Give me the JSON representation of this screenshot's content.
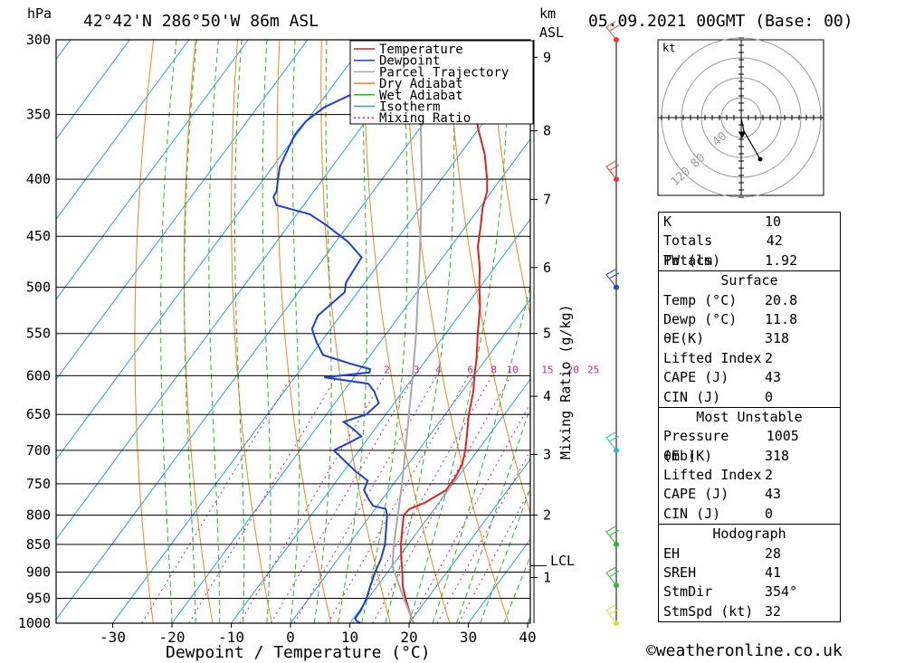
{
  "header": {
    "hpa_label": "hPa",
    "location": "42°42'N  286°50'W  86m  ASL",
    "km_label": "km",
    "asl_label": "ASL",
    "datetime": "05.09.2021  00GMT  (Base: 00)"
  },
  "axes": {
    "xlabel": "Dewpoint / Temperature (°C)",
    "mixing_label": "Mixing Ratio (g/kg)",
    "lcl_label": "LCL"
  },
  "colors": {
    "temperature": "#dd2222",
    "dewpoint": "#1f3fd0",
    "parcel": "#a8a8a8",
    "dry_adiabat": "#e88a20",
    "wet_adiabat": "#2cb52c",
    "isotherm": "#2a9ee0",
    "mixing_ratio": "#d0208a"
  },
  "chart_data": {
    "type": "line",
    "x_ticks": [
      -30,
      -20,
      -10,
      0,
      10,
      20,
      30,
      40
    ],
    "pressure_levels": [
      300,
      350,
      400,
      450,
      500,
      550,
      600,
      650,
      700,
      750,
      800,
      850,
      900,
      950,
      1000
    ],
    "km_ticks": [
      {
        "km": "1",
        "p": 910
      },
      {
        "km": "2",
        "p": 800
      },
      {
        "km": "3",
        "p": 706
      },
      {
        "km": "4",
        "p": 626
      },
      {
        "km": "5",
        "p": 550
      },
      {
        "km": "6",
        "p": 480
      },
      {
        "km": "7",
        "p": 417
      },
      {
        "km": "8",
        "p": 362
      },
      {
        "km": "9",
        "p": 311
      }
    ],
    "lcl_pressure": 888,
    "mixing_ratio_labels": [
      "2",
      "3",
      "4",
      "6",
      "8",
      "10",
      "15",
      "20",
      "25"
    ],
    "mixing_ratio_values": [
      2,
      3,
      4,
      6,
      8,
      10,
      15,
      20,
      25
    ],
    "legend": [
      "Temperature",
      "Dewpoint",
      "Parcel Trajectory",
      "Dry Adiabat",
      "Wet Adiabat",
      "Isotherm",
      "Mixing Ratio"
    ],
    "series": [
      {
        "name": "Temperature",
        "points": [
          [
            1000,
            20.8
          ],
          [
            990,
            19.8
          ],
          [
            975,
            18.5
          ],
          [
            950,
            16.3
          ],
          [
            925,
            14.2
          ],
          [
            900,
            12.5
          ],
          [
            875,
            10.6
          ],
          [
            850,
            8.8
          ],
          [
            825,
            7.2
          ],
          [
            800,
            5.6
          ],
          [
            790,
            5.8
          ],
          [
            780,
            7.6
          ],
          [
            760,
            9.6
          ],
          [
            740,
            9.6
          ],
          [
            720,
            9.1
          ],
          [
            700,
            7.9
          ],
          [
            680,
            6.4
          ],
          [
            650,
            4.0
          ],
          [
            620,
            1.9
          ],
          [
            600,
            0.1
          ],
          [
            580,
            -1.6
          ],
          [
            550,
            -4.6
          ],
          [
            520,
            -7.6
          ],
          [
            500,
            -10.1
          ],
          [
            480,
            -12.5
          ],
          [
            460,
            -15.4
          ],
          [
            440,
            -17.6
          ],
          [
            425,
            -19.4
          ],
          [
            410,
            -20.8
          ],
          [
            400,
            -22.3
          ],
          [
            380,
            -25.8
          ],
          [
            360,
            -30.2
          ],
          [
            345,
            -33.2
          ],
          [
            330,
            -36.0
          ],
          [
            315,
            -40.4
          ],
          [
            300,
            -45.1
          ]
        ]
      },
      {
        "name": "Dewpoint",
        "points": [
          [
            1000,
            11.8
          ],
          [
            995,
            10.8
          ],
          [
            990,
            10.3
          ],
          [
            975,
            10.3
          ],
          [
            950,
            9.7
          ],
          [
            925,
            8.8
          ],
          [
            900,
            7.9
          ],
          [
            875,
            7.2
          ],
          [
            850,
            6.1
          ],
          [
            830,
            4.8
          ],
          [
            800,
            2.8
          ],
          [
            790,
            1.8
          ],
          [
            785,
            -0.7
          ],
          [
            775,
            -2.2
          ],
          [
            760,
            -4.2
          ],
          [
            745,
            -4.8
          ],
          [
            730,
            -8.2
          ],
          [
            715,
            -11.2
          ],
          [
            700,
            -14.3
          ],
          [
            690,
            -12.8
          ],
          [
            680,
            -11.4
          ],
          [
            670,
            -13.6
          ],
          [
            660,
            -16.2
          ],
          [
            650,
            -13.3
          ],
          [
            635,
            -12.6
          ],
          [
            620,
            -14.8
          ],
          [
            610,
            -16.8
          ],
          [
            602,
            -25.0
          ],
          [
            596,
            -18.0
          ],
          [
            592,
            -18.3
          ],
          [
            585,
            -22.5
          ],
          [
            575,
            -28.0
          ],
          [
            560,
            -30.7
          ],
          [
            545,
            -33.1
          ],
          [
            530,
            -33.8
          ],
          [
            505,
            -32.2
          ],
          [
            495,
            -33.2
          ],
          [
            470,
            -33.7
          ],
          [
            455,
            -38.0
          ],
          [
            440,
            -43.6
          ],
          [
            430,
            -47.8
          ],
          [
            422,
            -54.6
          ],
          [
            415,
            -56.1
          ],
          [
            410,
            -56.3
          ],
          [
            398,
            -57.8
          ],
          [
            390,
            -58.8
          ],
          [
            365,
            -60.3
          ],
          [
            355,
            -60.1
          ],
          [
            345,
            -58.8
          ],
          [
            335,
            -55.5
          ],
          [
            320,
            -51.6
          ],
          [
            300,
            -45.0
          ]
        ]
      },
      {
        "name": "Parcel Trajectory",
        "points": [
          [
            1000,
            20.8
          ],
          [
            950,
            16.0
          ],
          [
            900,
            11.2
          ],
          [
            888,
            10.0
          ],
          [
            850,
            7.6
          ],
          [
            800,
            4.6
          ],
          [
            750,
            1.4
          ],
          [
            700,
            -2.2
          ],
          [
            650,
            -6.1
          ],
          [
            600,
            -10.3
          ],
          [
            550,
            -15.0
          ],
          [
            500,
            -20.4
          ],
          [
            450,
            -26.4
          ],
          [
            400,
            -33.3
          ],
          [
            350,
            -41.6
          ],
          [
            300,
            -51.5
          ]
        ]
      }
    ]
  },
  "hodograph": {
    "unit": "kt",
    "ring_labels": [
      "40",
      "80",
      "120"
    ]
  },
  "stats": {
    "indices": [
      {
        "label": "K",
        "value": "10"
      },
      {
        "label": "Totals Totals",
        "value": "42"
      },
      {
        "label": "PW (cm)",
        "value": "1.92"
      }
    ],
    "surface": {
      "title": "Surface",
      "rows": [
        {
          "label": "Temp (°C)",
          "value": "20.8"
        },
        {
          "label": "Dewp (°C)",
          "value": "11.8"
        },
        {
          "label": "θE(K)",
          "value": "318"
        },
        {
          "label": "Lifted Index",
          "value": "2"
        },
        {
          "label": "CAPE (J)",
          "value": "43"
        },
        {
          "label": "CIN (J)",
          "value": "0"
        }
      ]
    },
    "most_unstable": {
      "title": "Most Unstable",
      "rows": [
        {
          "label": "Pressure (mb)",
          "value": "1005"
        },
        {
          "label": "θE (K)",
          "value": "318"
        },
        {
          "label": "Lifted Index",
          "value": "2"
        },
        {
          "label": "CAPE (J)",
          "value": "43"
        },
        {
          "label": "CIN (J)",
          "value": "0"
        }
      ]
    },
    "hodograph": {
      "title": "Hodograph",
      "rows": [
        {
          "label": "EH",
          "value": "28"
        },
        {
          "label": "SREH",
          "value": "41"
        },
        {
          "label": "StmDir",
          "value": "354°"
        },
        {
          "label": "StmSpd (kt)",
          "value": "32"
        }
      ]
    }
  },
  "footer": {
    "copyright": "©weatheronline.co.uk"
  }
}
